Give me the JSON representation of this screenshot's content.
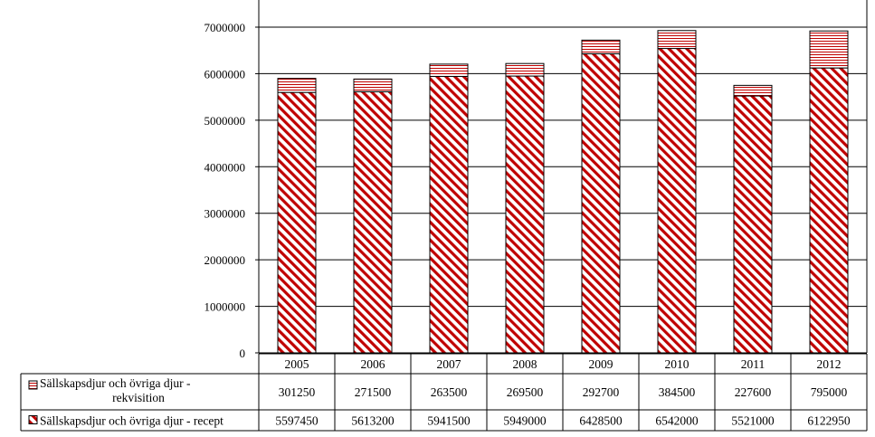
{
  "chart_data": {
    "type": "bar",
    "stacked": true,
    "categories": [
      "2005",
      "2006",
      "2007",
      "2008",
      "2009",
      "2010",
      "2011",
      "2012"
    ],
    "series": [
      {
        "name": "Sällskapsdjur och övriga djur - recept",
        "values": [
          5597450,
          5613200,
          5941500,
          5949000,
          6428500,
          6542000,
          5521000,
          6122950
        ],
        "color": "#c00000",
        "pattern": "diagonal-stripes"
      },
      {
        "name": "Sällskapsdjur och övriga djur - rekvisition",
        "legend_lines": [
          "Sällskapsdjur och övriga djur -",
          "rekvisition"
        ],
        "values": [
          301250,
          271500,
          263500,
          269500,
          292700,
          384500,
          227600,
          795000
        ],
        "color": "#c00000",
        "pattern": "horizontal-stripes"
      }
    ],
    "data_table_order": [
      1,
      0
    ],
    "yticks": [
      0,
      1000000,
      2000000,
      3000000,
      4000000,
      5000000,
      6000000,
      7000000
    ],
    "ylim": [
      0,
      7500000
    ],
    "grid": true,
    "legend": "data-table",
    "title": "",
    "xlabel": "",
    "ylabel": ""
  }
}
